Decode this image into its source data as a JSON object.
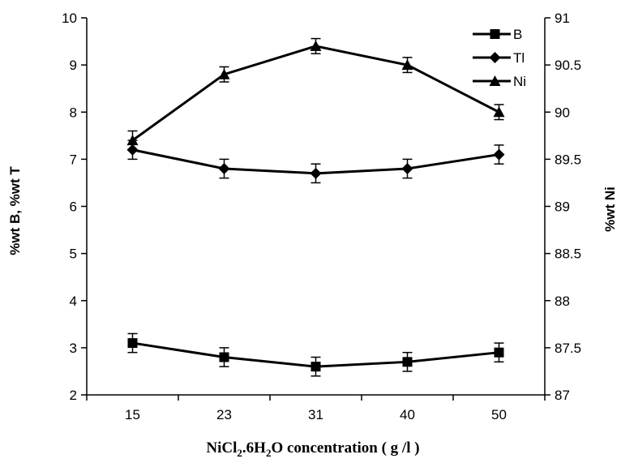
{
  "chart_data": {
    "type": "line",
    "title": "",
    "categories": [
      "15",
      "23",
      "31",
      "40",
      "50"
    ],
    "xlabel": {
      "prefix": "NiCl",
      "sub1": "2",
      "mid": ".6H",
      "sub2": "2",
      "suffix": "O concentration ( g /l  )"
    },
    "ylabel_left": "%wt B, %wt T",
    "ylabel_right": "%wt Ni",
    "ylim_left": [
      2,
      10
    ],
    "ylim_right": [
      87,
      91
    ],
    "left_ticks": [
      "2",
      "3",
      "4",
      "5",
      "6",
      "7",
      "8",
      "9",
      "10"
    ],
    "right_ticks": [
      "87",
      "87.5",
      "88",
      "88.5",
      "89",
      "89.5",
      "90",
      "90.5",
      "91"
    ],
    "grid": false,
    "legend_position": "top-right",
    "series": [
      {
        "name": "B",
        "axis": "left",
        "marker": "square",
        "values": [
          3.1,
          2.8,
          2.6,
          2.7,
          2.9
        ],
        "error": [
          0.2,
          0.2,
          0.2,
          0.2,
          0.2
        ]
      },
      {
        "name": "Tl",
        "axis": "left",
        "marker": "diamond",
        "values": [
          7.2,
          6.8,
          6.7,
          6.8,
          7.1
        ],
        "error": [
          0.2,
          0.2,
          0.2,
          0.2,
          0.2
        ]
      },
      {
        "name": "Ni",
        "axis": "right",
        "marker": "triangle",
        "values": [
          89.7,
          90.4,
          90.7,
          90.5,
          90.0
        ],
        "error": [
          0.1,
          0.08,
          0.08,
          0.08,
          0.08
        ]
      }
    ]
  }
}
